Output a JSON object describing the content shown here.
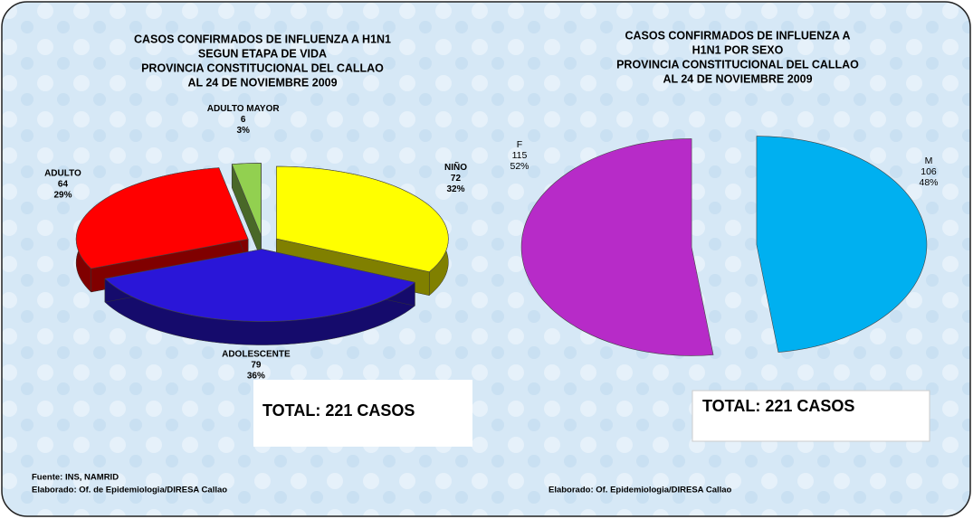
{
  "chart_data": [
    {
      "type": "pie3d",
      "title": [
        "CASOS CONFIRMADOS DE INFLUENZA A H1N1",
        "SEGUN ETAPA DE VIDA",
        "PROVINCIA CONSTITUCIONAL DEL CALLAO",
        "AL 24 DE NOVIEMBRE 2009"
      ],
      "categories": [
        "NIÑO",
        "ADOLESCENTE",
        "ADULTO",
        "ADULTO MAYOR"
      ],
      "values": [
        72,
        79,
        64,
        6
      ],
      "percent_labels": [
        "32%",
        "36%",
        "29%",
        "3%"
      ],
      "colors": [
        "#ffff00",
        "#2a16d8",
        "#ff0000",
        "#92d050"
      ],
      "total_label": "TOTAL: 221 CASOS",
      "source": "Fuente: INS, NAMRID",
      "credit": "Elaborado: Of. de Epidemiologia/DIRESA Callao"
    },
    {
      "type": "pie",
      "title": [
        "CASOS CONFIRMADOS DE INFLUENZA A",
        "H1N1 POR SEXO",
        "PROVINCIA CONSTITUCIONAL DEL CALLAO",
        "AL  24 DE NOVIEMBRE 2009"
      ],
      "categories": [
        "M",
        "F"
      ],
      "values": [
        106,
        115
      ],
      "percent_labels": [
        "48%",
        "52%"
      ],
      "colors": [
        "#00b0f0",
        "#b72bc8"
      ],
      "total_label": "TOTAL: 221 CASOS",
      "credit": "Elaborado: Of. Epidemiologia/DIRESA Callao"
    }
  ]
}
